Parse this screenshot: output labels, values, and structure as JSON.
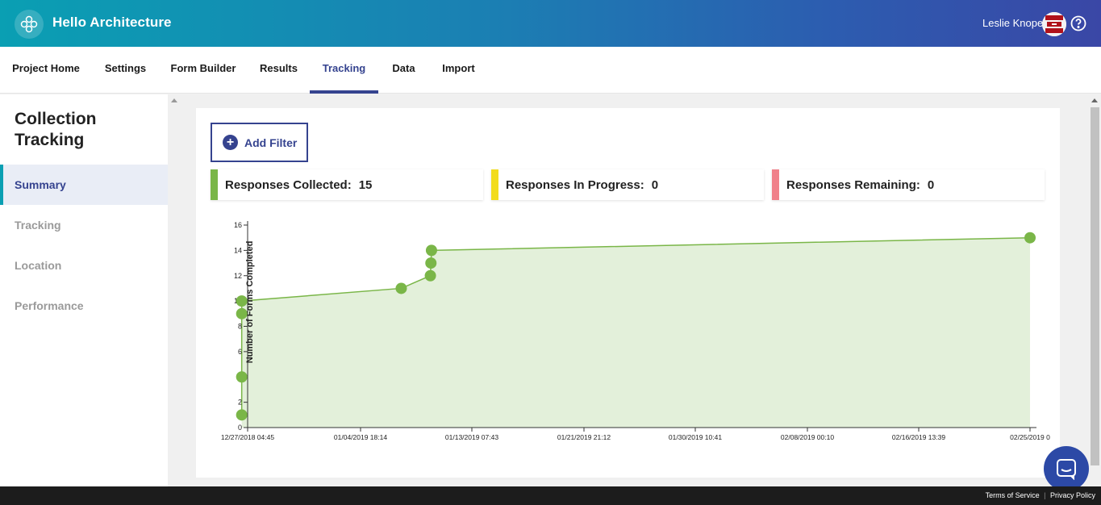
{
  "header": {
    "app_title": "Hello Architecture",
    "user_name": "Leslie Knope",
    "logo_icon": "clover-icon",
    "help_icon": "question-circle-icon"
  },
  "nav": {
    "tabs": [
      {
        "label": "Project Home"
      },
      {
        "label": "Settings"
      },
      {
        "label": "Form Builder"
      },
      {
        "label": "Results"
      },
      {
        "label": "Tracking",
        "active": true
      },
      {
        "label": "Data"
      },
      {
        "label": "Import"
      }
    ]
  },
  "sidebar": {
    "title": "Collection Tracking",
    "items": [
      {
        "label": "Summary",
        "active": true
      },
      {
        "label": "Tracking"
      },
      {
        "label": "Location"
      },
      {
        "label": "Performance"
      }
    ]
  },
  "main": {
    "add_filter_label": "Add Filter",
    "stats": [
      {
        "label": "Responses Collected:",
        "value": "15",
        "color": "#7ab648"
      },
      {
        "label": "Responses In Progress:",
        "value": "0",
        "color": "#f2dc1d"
      },
      {
        "label": "Responses Remaining:",
        "value": "0",
        "color": "#f0808a"
      }
    ]
  },
  "chart_data": {
    "type": "area",
    "title": "",
    "xlabel": "",
    "ylabel": "Number of Forms Completed",
    "ylim": [
      0,
      16
    ],
    "yticks": [
      0,
      2,
      4,
      6,
      8,
      10,
      12,
      14,
      16
    ],
    "xticks": [
      "12/27/2018 04:45",
      "01/04/2019 18:14",
      "01/13/2019 07:43",
      "01/21/2019 21:12",
      "01/30/2019 10:41",
      "02/08/2019 00:10",
      "02/16/2019 13:39",
      "02/25/2019 0"
    ],
    "points": [
      {
        "x": "12/27/2018 05:45",
        "y": 1
      },
      {
        "x": "12/27/2018 05:45",
        "y": 4
      },
      {
        "x": "12/27/2018 05:45",
        "y": 9
      },
      {
        "x": "12/27/2018 05:45",
        "y": 10
      },
      {
        "x": "01/08/2019 08:00",
        "y": 11
      },
      {
        "x": "01/10/2019 13:00",
        "y": 12
      },
      {
        "x": "01/10/2019 14:00",
        "y": 13
      },
      {
        "x": "01/10/2019 15:00",
        "y": 14
      },
      {
        "x": "02/25/2019 00:00",
        "y": 15
      }
    ],
    "color": "#7ab648",
    "fill": "#e3f0da",
    "grid": false,
    "legend": "none"
  },
  "footer": {
    "terms": "Terms of Service",
    "separator": "|",
    "privacy": "Privacy Policy"
  }
}
